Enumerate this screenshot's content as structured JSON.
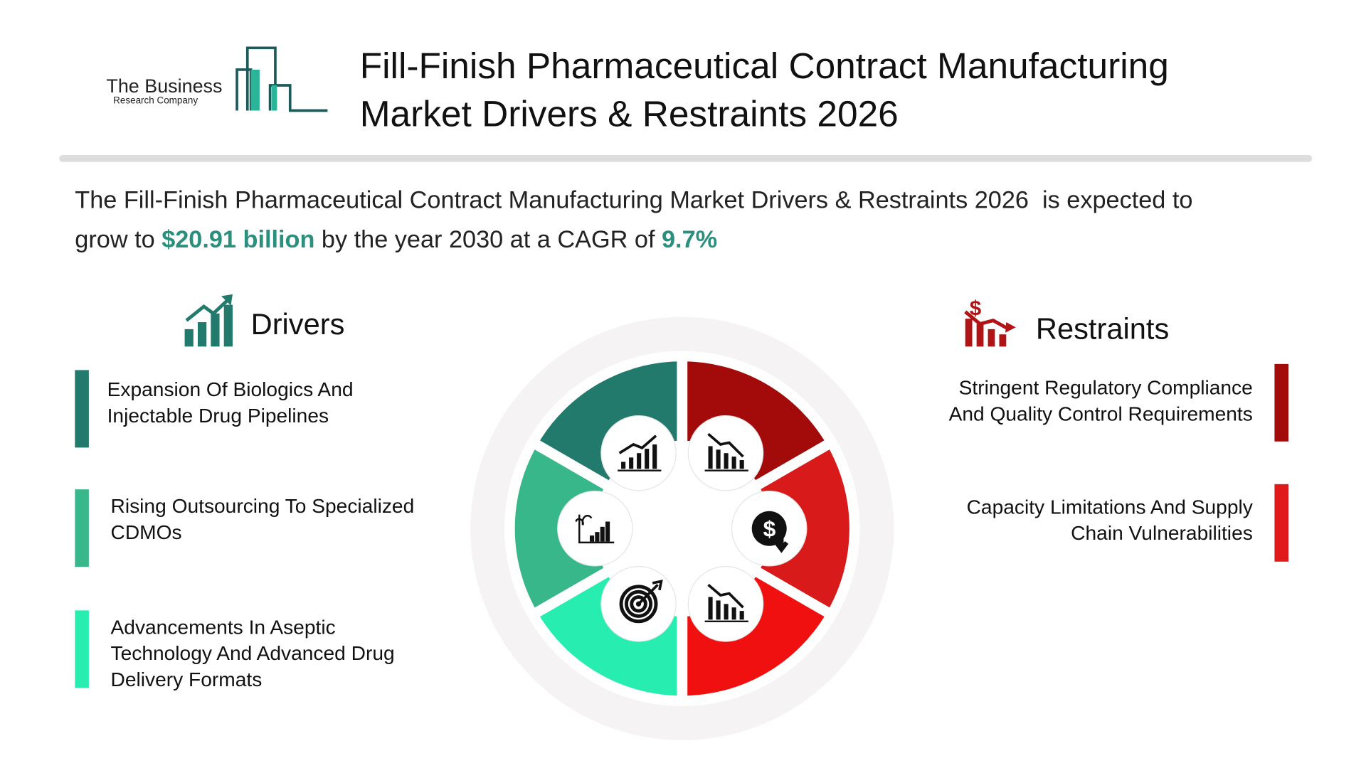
{
  "logo": {
    "name": "The Business",
    "subname": "Research Company"
  },
  "header": {
    "title_line1": "Fill-Finish Pharmaceutical Contract Manufacturing",
    "title_line2": "Market Drivers & Restraints 2026"
  },
  "intro": {
    "line1": "The Fill-Finish Pharmaceutical Contract Manufacturing Market Drivers & Restraints 2026  is expected to",
    "line2_prefix": "grow to ",
    "market_size": "$20.91 billion",
    "middle": " by the year 2030 at a CAGR of ",
    "cagr": "9.7%"
  },
  "drivers": {
    "heading": "Drivers",
    "items": [
      [
        "Expansion Of Biologics And",
        "Injectable Drug Pipelines"
      ],
      [
        "Rising Outsourcing To Specialized",
        "CDMOs"
      ],
      [
        "Advancements In Aseptic",
        "Technology And Advanced Drug",
        "Delivery Formats"
      ]
    ]
  },
  "restraints": {
    "heading": "Restraints",
    "items": [
      [
        "Stringent Regulatory Compliance",
        "And Quality Control Requirements"
      ],
      [
        "Capacity Limitations And Supply",
        "Chain Vulnerabilities"
      ]
    ]
  }
}
